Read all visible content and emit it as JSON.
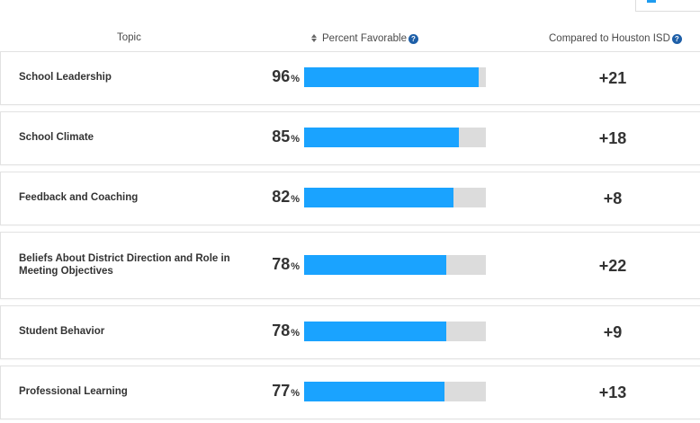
{
  "header": {
    "topic": "Topic",
    "percent_favorable": "Percent Favorable",
    "compared_to": "Compared to Houston ISD"
  },
  "rows": [
    {
      "topic": "School Leadership",
      "percent": "96",
      "percent_value": 96,
      "compare": "+21"
    },
    {
      "topic": "School Climate",
      "percent": "85",
      "percent_value": 85,
      "compare": "+18"
    },
    {
      "topic": "Feedback and Coaching",
      "percent": "82",
      "percent_value": 82,
      "compare": "+8"
    },
    {
      "topic": "Beliefs About District Direction and Role in Meeting Objectives",
      "percent": "78",
      "percent_value": 78,
      "compare": "+22"
    },
    {
      "topic": "Student Behavior",
      "percent": "78",
      "percent_value": 78,
      "compare": "+9"
    },
    {
      "topic": "Professional Learning",
      "percent": "77",
      "percent_value": 77,
      "compare": "+13"
    }
  ],
  "percent_sign": "%",
  "colors": {
    "bar": "#1aa3ff",
    "track": "#dcdcdc",
    "help_icon": "#1e5fa8"
  },
  "icons": {
    "sort": "sort-icon",
    "help": "help-icon"
  }
}
